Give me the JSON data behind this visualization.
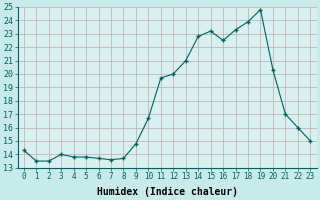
{
  "x": [
    0,
    1,
    2,
    3,
    4,
    5,
    6,
    7,
    8,
    9,
    10,
    11,
    12,
    13,
    14,
    15,
    16,
    17,
    18,
    19,
    20,
    21,
    22,
    23
  ],
  "y": [
    14.3,
    13.5,
    13.5,
    14.0,
    13.8,
    13.8,
    13.7,
    13.6,
    13.7,
    14.8,
    16.7,
    19.7,
    20.0,
    21.0,
    22.8,
    23.2,
    22.5,
    23.3,
    23.9,
    24.8,
    20.3,
    17.0,
    16.0,
    15.0
  ],
  "xlabel": "Humidex (Indice chaleur)",
  "ylim": [
    13,
    25
  ],
  "xlim": [
    -0.5,
    23.5
  ],
  "yticks": [
    13,
    14,
    15,
    16,
    17,
    18,
    19,
    20,
    21,
    22,
    23,
    24,
    25
  ],
  "xticks": [
    0,
    1,
    2,
    3,
    4,
    5,
    6,
    7,
    8,
    9,
    10,
    11,
    12,
    13,
    14,
    15,
    16,
    17,
    18,
    19,
    20,
    21,
    22,
    23
  ],
  "line_color": "#006060",
  "marker": "+",
  "marker_color": "#006060",
  "bg_color": "#c8eaea",
  "plot_bg": "#d8f0f0",
  "grid_color": "#c0a8a8",
  "xlabel_fontsize": 7,
  "tick_fontsize": 5.5,
  "ytick_fontsize": 6
}
